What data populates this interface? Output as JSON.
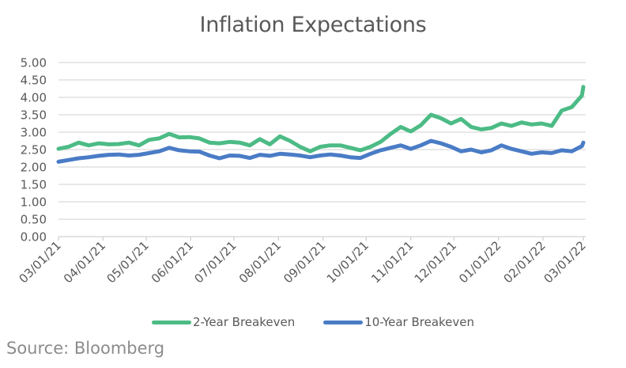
{
  "chart_data": {
    "type": "line",
    "title": "Inflation Expectations",
    "xlabel": "",
    "ylabel": "",
    "ylim": [
      0,
      5
    ],
    "yticks": [
      "0.00",
      "0.50",
      "1.00",
      "1.50",
      "2.00",
      "2.50",
      "3.00",
      "3.50",
      "4.00",
      "4.50",
      "5.00"
    ],
    "xlim": [
      "2021-03-01",
      "2022-03-01"
    ],
    "xticks": [
      "03/01/21",
      "04/01/21",
      "05/01/21",
      "06/01/21",
      "07/01/21",
      "08/01/21",
      "09/01/21",
      "10/01/21",
      "11/01/21",
      "12/01/21",
      "01/01/22",
      "02/01/22",
      "03/01/22"
    ],
    "xtick_dates": [
      "2021-03-01",
      "2021-04-01",
      "2021-05-01",
      "2021-06-01",
      "2021-07-01",
      "2021-08-01",
      "2021-09-01",
      "2021-10-01",
      "2021-11-01",
      "2021-12-01",
      "2022-01-01",
      "2022-02-01",
      "2022-03-01"
    ],
    "grid": true,
    "legend_position": "bottom",
    "x": [
      "2021-03-01",
      "2021-03-08",
      "2021-03-15",
      "2021-03-22",
      "2021-03-29",
      "2021-04-05",
      "2021-04-12",
      "2021-04-19",
      "2021-04-26",
      "2021-05-03",
      "2021-05-10",
      "2021-05-17",
      "2021-05-24",
      "2021-05-31",
      "2021-06-07",
      "2021-06-14",
      "2021-06-21",
      "2021-06-28",
      "2021-07-05",
      "2021-07-12",
      "2021-07-19",
      "2021-07-26",
      "2021-08-02",
      "2021-08-09",
      "2021-08-16",
      "2021-08-23",
      "2021-08-30",
      "2021-09-06",
      "2021-09-13",
      "2021-09-20",
      "2021-09-27",
      "2021-10-04",
      "2021-10-11",
      "2021-10-18",
      "2021-10-25",
      "2021-11-01",
      "2021-11-08",
      "2021-11-15",
      "2021-11-22",
      "2021-11-29",
      "2021-12-06",
      "2021-12-13",
      "2021-12-20",
      "2021-12-27",
      "2022-01-03",
      "2022-01-10",
      "2022-01-17",
      "2022-01-24",
      "2022-01-31",
      "2022-02-07",
      "2022-02-14",
      "2022-02-21",
      "2022-02-28",
      "2022-03-01"
    ],
    "series": [
      {
        "name": "2-Year Breakeven",
        "color": "#4cbb85",
        "values": [
          2.52,
          2.58,
          2.7,
          2.62,
          2.68,
          2.65,
          2.66,
          2.7,
          2.62,
          2.78,
          2.82,
          2.95,
          2.85,
          2.86,
          2.82,
          2.7,
          2.68,
          2.72,
          2.7,
          2.62,
          2.8,
          2.65,
          2.88,
          2.75,
          2.58,
          2.45,
          2.58,
          2.62,
          2.62,
          2.55,
          2.48,
          2.58,
          2.72,
          2.95,
          3.15,
          3.02,
          3.2,
          3.5,
          3.4,
          3.25,
          3.38,
          3.15,
          3.08,
          3.12,
          3.25,
          3.18,
          3.28,
          3.22,
          3.25,
          3.18,
          3.62,
          3.72,
          4.05,
          4.3
        ]
      },
      {
        "name": "10-Year Breakeven",
        "color": "#4a7cc6",
        "values": [
          2.15,
          2.2,
          2.25,
          2.28,
          2.32,
          2.35,
          2.36,
          2.33,
          2.35,
          2.4,
          2.45,
          2.55,
          2.48,
          2.45,
          2.44,
          2.33,
          2.25,
          2.33,
          2.32,
          2.26,
          2.35,
          2.32,
          2.38,
          2.36,
          2.33,
          2.28,
          2.33,
          2.36,
          2.33,
          2.28,
          2.26,
          2.38,
          2.48,
          2.55,
          2.62,
          2.52,
          2.62,
          2.75,
          2.68,
          2.58,
          2.45,
          2.5,
          2.42,
          2.48,
          2.62,
          2.52,
          2.45,
          2.38,
          2.42,
          2.4,
          2.48,
          2.45,
          2.6,
          2.7
        ]
      }
    ],
    "source": "Source: Bloomberg"
  }
}
